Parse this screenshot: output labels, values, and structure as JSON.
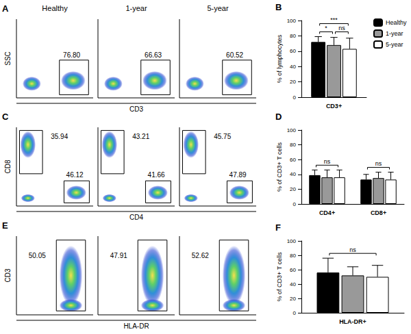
{
  "flow_cytometry": {
    "columns": [
      "Healthy",
      "1-year",
      "5-year"
    ],
    "rows": [
      {
        "panel": "A",
        "y_label": "SSC",
        "x_label": "CD3",
        "gates": [
          [
            "76.80"
          ],
          [
            "66.63"
          ],
          [
            "60.52"
          ]
        ]
      },
      {
        "panel": "C",
        "y_label": "CD8",
        "x_label": "CD4",
        "gates": [
          [
            "35.94",
            "46.12"
          ],
          [
            "43.21",
            "41.66"
          ],
          [
            "45.75",
            "47.89"
          ]
        ]
      },
      {
        "panel": "E",
        "y_label": "CD3",
        "x_label": "HLA-DR",
        "gates": [
          [
            "50.05"
          ],
          [
            "47.91"
          ],
          [
            "52.62"
          ]
        ]
      }
    ]
  },
  "chart_data": [
    {
      "type": "bar",
      "title": "B",
      "ylabel": "% of lymphocytes",
      "categories": [
        "CD3+"
      ],
      "series": [
        {
          "name": "Healthy",
          "color": "#000000",
          "values": [
            72
          ],
          "errors": [
            7
          ]
        },
        {
          "name": "1-year",
          "color": "#999999",
          "values": [
            68
          ],
          "errors": [
            10
          ]
        },
        {
          "name": "5-year",
          "color": "#ffffff",
          "values": [
            63
          ],
          "errors": [
            14
          ]
        }
      ],
      "ylim": [
        0,
        100
      ],
      "yticks": [
        0,
        20,
        40,
        60,
        80,
        100
      ],
      "grid": false,
      "legend": "upper right",
      "annotations": [
        {
          "text": "*",
          "category": "CD3+",
          "from": "Healthy",
          "to": "1-year"
        },
        {
          "text": "ns",
          "category": "CD3+",
          "from": "1-year",
          "to": "5-year"
        },
        {
          "text": "***",
          "category": "CD3+",
          "from": "Healthy",
          "to": "5-year"
        }
      ]
    },
    {
      "type": "bar",
      "title": "D",
      "ylabel": "% of CD3+ T cells",
      "categories": [
        "CD4+",
        "CD8+"
      ],
      "series": [
        {
          "name": "Healthy",
          "color": "#000000",
          "values": [
            39,
            33
          ],
          "errors": [
            7,
            7
          ]
        },
        {
          "name": "1-year",
          "color": "#999999",
          "values": [
            36,
            35
          ],
          "errors": [
            10,
            8
          ]
        },
        {
          "name": "5-year",
          "color": "#ffffff",
          "values": [
            36,
            33
          ],
          "errors": [
            10,
            10
          ]
        }
      ],
      "ylim": [
        0,
        100
      ],
      "yticks": [
        0,
        20,
        40,
        60,
        80,
        100
      ],
      "grid": false,
      "annotations": [
        {
          "text": "ns",
          "category": "CD4+",
          "from": "Healthy",
          "to": "5-year"
        },
        {
          "text": "ns",
          "category": "CD8+",
          "from": "Healthy",
          "to": "5-year"
        }
      ]
    },
    {
      "type": "bar",
      "title": "F",
      "ylabel": "% of CD3+ T cells",
      "categories": [
        "HLA-DR+"
      ],
      "series": [
        {
          "name": "Healthy",
          "color": "#000000",
          "values": [
            56
          ],
          "errors": [
            20
          ]
        },
        {
          "name": "1-year",
          "color": "#999999",
          "values": [
            52
          ],
          "errors": [
            12
          ]
        },
        {
          "name": "5-year",
          "color": "#ffffff",
          "values": [
            50
          ],
          "errors": [
            16
          ]
        }
      ],
      "ylim": [
        0,
        100
      ],
      "yticks": [
        0,
        20,
        40,
        60,
        80,
        100
      ],
      "grid": false,
      "annotations": [
        {
          "text": "ns",
          "category": "HLA-DR+",
          "from": "Healthy",
          "to": "5-year"
        }
      ]
    }
  ]
}
